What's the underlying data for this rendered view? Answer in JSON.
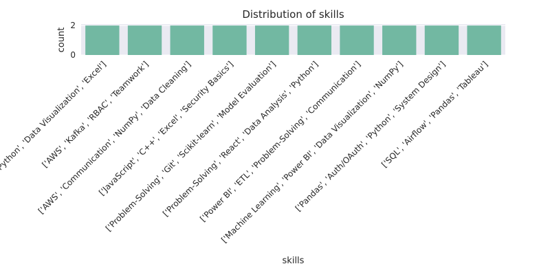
{
  "chart_data": {
    "type": "bar",
    "title": "Distribution of skills",
    "xlabel": "skills",
    "ylabel": "count",
    "categories": [
      "['Feature Engineering', 'Python', 'Data Visualization', 'Excel']",
      "['AWS', 'Kafka', 'RBAC', 'Teamwork']",
      "['AWS', 'Communication', 'NumPy', 'Data Cleaning']",
      "['JavaScript', 'C++', 'Excel', 'Security Basics']",
      "['Problem-Solving', 'Git', 'Scikit-learn', 'Model Evaluation']",
      "['Problem-Solving', 'React', 'Data Analysis', 'Python']",
      "['Power BI', 'ETL', 'Problem-Solving', 'Communication']",
      "['Machine Learning', 'Power BI', 'Data Visualization', 'NumPy']",
      "['Pandas', 'Auth/OAuth', 'Python', 'System Design']",
      "['SQL', 'Airflow', 'Pandas', 'Tableau']"
    ],
    "values": [
      2,
      2,
      2,
      2,
      2,
      2,
      2,
      2,
      2,
      2
    ],
    "yticks": [
      0,
      2
    ],
    "ylim": [
      0,
      2.1
    ],
    "grid": true,
    "colors": {
      "bar": "#72b8a2",
      "plot_background": "#eaeaf2",
      "grid": "#ffffff"
    }
  }
}
